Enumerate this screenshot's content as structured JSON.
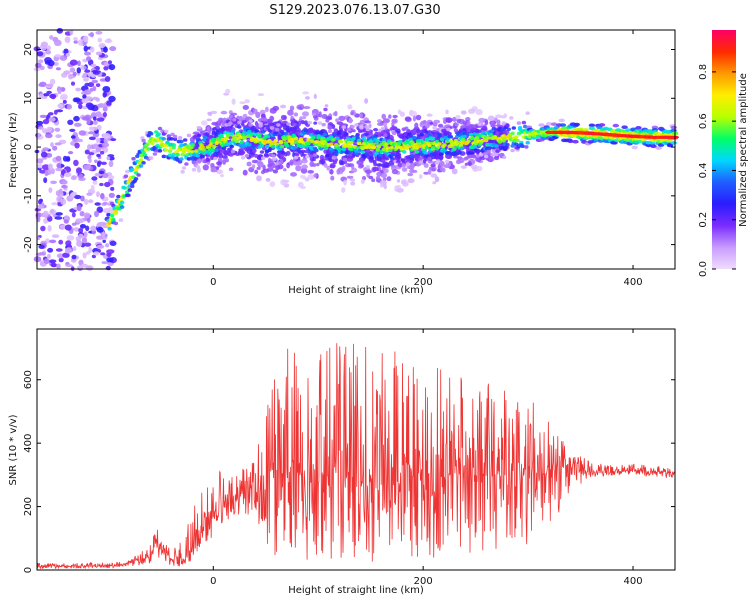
{
  "title": "S129.2023.076.13.07.G30",
  "chart_data": [
    {
      "type": "heatmap",
      "xlabel": "Height of straight line (km)",
      "ylabel": "Frequency (Hz)",
      "xlim": [
        -168,
        440
      ],
      "ylim": [
        -25,
        24
      ],
      "xticks": [
        0,
        200,
        400
      ],
      "yticks": [
        -20,
        -10,
        0,
        10,
        20
      ],
      "grid": false,
      "colorbar": {
        "label": "Normalized spectral amplitude",
        "range": [
          0.0,
          0.97
        ],
        "ticks": [
          0.0,
          0.2,
          0.4,
          0.6,
          0.8
        ],
        "colormap": [
          "#f0dcff",
          "#c89bff",
          "#7a2cff",
          "#2a1cff",
          "#1f5fff",
          "#00d8ff",
          "#00ff66",
          "#b8ff00",
          "#ffee00",
          "#ff9900",
          "#ff2a00",
          "#ff0066"
        ]
      },
      "ridge": {
        "x": [
          -100,
          -90,
          -80,
          -75,
          -70,
          -65,
          -60,
          -55,
          -50,
          -45,
          -40,
          -30,
          -20,
          -10,
          0,
          10,
          20,
          40,
          60,
          80,
          100,
          120,
          140,
          160,
          180,
          200,
          220,
          240,
          260,
          280,
          300,
          320,
          340,
          360,
          380,
          400,
          420,
          440
        ],
        "y": [
          -16,
          -12,
          -7,
          -5,
          -3,
          -1,
          1,
          2,
          1,
          0,
          -0.5,
          -1,
          -0.5,
          0,
          0.5,
          1.5,
          2,
          1.5,
          1,
          1.5,
          1,
          0.5,
          0.5,
          0,
          0,
          0.3,
          0.5,
          1,
          1.5,
          2,
          2.5,
          3,
          3,
          2.8,
          2.5,
          2.2,
          2,
          2
        ]
      },
      "background_noise_region": {
        "x": [
          -168,
          -95
        ],
        "y": [
          -25,
          24
        ]
      },
      "scatter_region": {
        "x": [
          10,
          160
        ],
        "y": [
          -15,
          15
        ]
      }
    },
    {
      "type": "line",
      "xlabel": "Height of straight line (km)",
      "ylabel": "SNR (10 * v/v)",
      "xlim": [
        -168,
        440
      ],
      "ylim": [
        0,
        760
      ],
      "xticks": [
        0,
        200,
        400
      ],
      "yticks": [
        0,
        200,
        400,
        600
      ],
      "grid": false,
      "series": [
        {
          "color": "#ee3333",
          "envelope_x": [
            -168,
            -130,
            -100,
            -80,
            -60,
            -55,
            -50,
            -40,
            -30,
            -20,
            -10,
            0,
            10,
            20,
            30,
            40,
            50,
            55,
            70,
            100,
            150,
            200,
            250,
            300,
            330,
            345,
            360,
            380,
            400,
            420,
            440
          ],
          "envelope_mean": [
            12,
            12,
            14,
            20,
            45,
            90,
            80,
            40,
            30,
            60,
            120,
            170,
            200,
            220,
            240,
            250,
            270,
            300,
            310,
            300,
            300,
            310,
            300,
            300,
            320,
            340,
            310,
            305,
            315,
            310,
            305
          ],
          "envelope_max": [
            22,
            22,
            24,
            30,
            80,
            140,
            120,
            60,
            110,
            190,
            250,
            300,
            320,
            330,
            340,
            350,
            550,
            650,
            700,
            720,
            720,
            710,
            600,
            550,
            450,
            370,
            340,
            330,
            335,
            330,
            320
          ],
          "envelope_min": [
            5,
            5,
            6,
            10,
            20,
            40,
            35,
            10,
            10,
            30,
            80,
            100,
            130,
            150,
            170,
            180,
            60,
            30,
            25,
            20,
            25,
            30,
            40,
            70,
            180,
            260,
            290,
            295,
            300,
            295,
            290
          ]
        }
      ]
    }
  ]
}
